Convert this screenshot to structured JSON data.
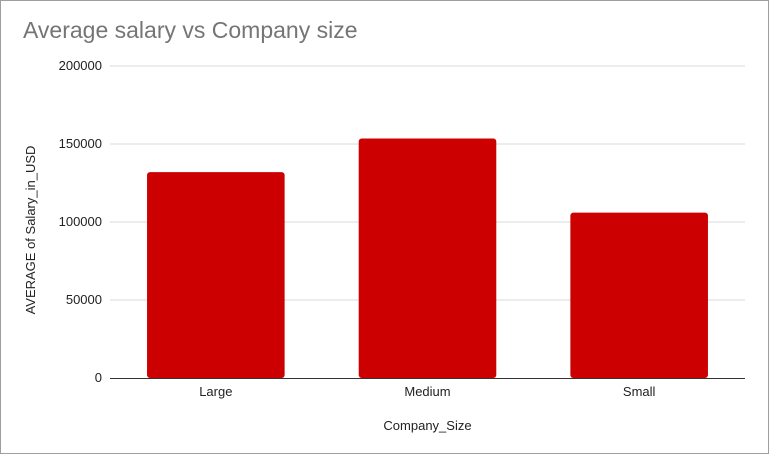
{
  "chart_data": {
    "type": "bar",
    "title": "Average salary vs Company size",
    "xlabel": "Company_Size",
    "ylabel": "AVERAGE of Salary_in_USD",
    "categories": [
      "Large",
      "Medium",
      "Small"
    ],
    "values": [
      132000,
      153500,
      106000
    ],
    "ylim": [
      0,
      200000
    ],
    "yticks": [
      0,
      50000,
      100000,
      150000,
      200000
    ],
    "ytick_labels": [
      "0",
      "50000",
      "100000",
      "150000",
      "200000"
    ],
    "grid": true,
    "legend": "none",
    "colors": {
      "bar": "#cc0000",
      "grid": "#d9d9d9",
      "axis": "#333333",
      "title": "#757575"
    }
  }
}
